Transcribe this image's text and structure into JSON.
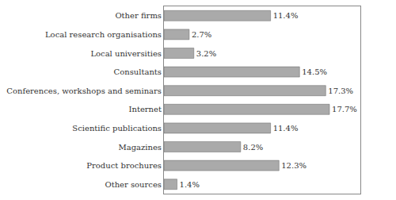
{
  "chart_data": {
    "type": "bar",
    "orientation": "horizontal",
    "categories": [
      "Other sources",
      "Product brochures",
      "Magazines",
      "Scientific publications",
      "Internet",
      "Conferences, workshops and seminars",
      "Consultants",
      "Local universities",
      "Local research organisations",
      "Other firms"
    ],
    "values": [
      1.4,
      12.3,
      8.2,
      11.4,
      17.7,
      17.3,
      14.5,
      3.2,
      2.7,
      11.4
    ],
    "value_labels": [
      "1.4%",
      "12.3%",
      "8.2%",
      "11.4%",
      "17.7%",
      "17.3%",
      "14.5%",
      "3.2%",
      "2.7%",
      "11.4%"
    ],
    "data_labels": true,
    "color": "#aaaaaa",
    "xlim": [
      0,
      21
    ],
    "grid": false,
    "tick_labels": "y"
  }
}
